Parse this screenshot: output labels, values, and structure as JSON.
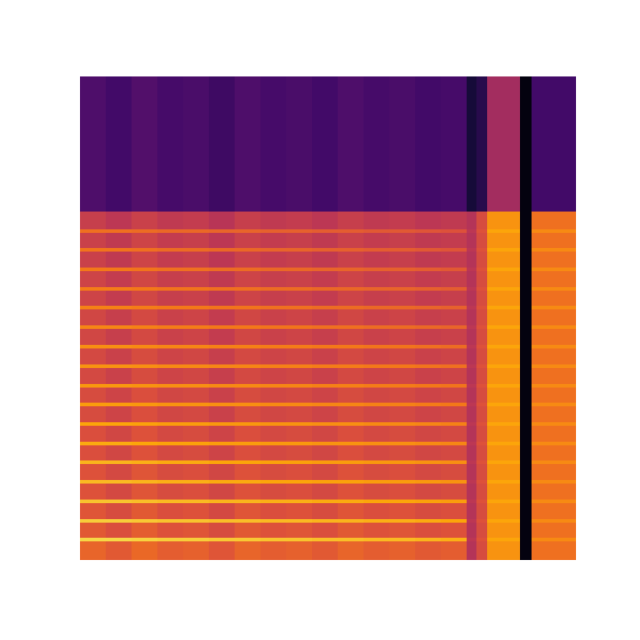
{
  "chart_data": {
    "type": "heatmap",
    "tick_labels": false,
    "xlim": [
      0,
      558
    ],
    "ylim": [
      0,
      544
    ],
    "zlim": [
      -100,
      0
    ],
    "x_bins": [
      0,
      29,
      58,
      87,
      116,
      145,
      174,
      203,
      232,
      261,
      290,
      319,
      348,
      377,
      406,
      435,
      446,
      458,
      495,
      508,
      558
    ],
    "y_bins": [
      0,
      21,
      25,
      42,
      46,
      64,
      68,
      86,
      90,
      108,
      112,
      129,
      133,
      151,
      155,
      173,
      177,
      194,
      198,
      216,
      220,
      238,
      242,
      260,
      264,
      282,
      286,
      303,
      307,
      325,
      329,
      347,
      351,
      368,
      372,
      392,
      544
    ],
    "values": [
      [
        -35,
        -38,
        -34,
        -37,
        -36,
        -39,
        -35,
        -37,
        -36,
        -38,
        -35,
        -37,
        -36,
        -38,
        -37,
        -52,
        -42,
        -24,
        -98,
        -32
      ],
      [
        -10,
        -10,
        -11,
        -12,
        -12,
        -13,
        -13,
        -14,
        -14,
        -15,
        -15,
        -16,
        -16,
        -17,
        -18,
        -50,
        -40,
        -20,
        -98,
        -26
      ],
      [
        -38,
        -41,
        -37,
        -40,
        -39,
        -42,
        -38,
        -40,
        -39,
        -41,
        -38,
        -40,
        -39,
        -41,
        -40,
        -52,
        -42,
        -24,
        -98,
        -32
      ],
      [
        -12,
        -12,
        -13,
        -14,
        -14,
        -15,
        -15,
        -16,
        -16,
        -17,
        -17,
        -18,
        -18,
        -19,
        -20,
        -50,
        -40,
        -20,
        -98,
        -26
      ],
      [
        -39,
        -42,
        -38,
        -41,
        -40,
        -43,
        -39,
        -41,
        -40,
        -42,
        -39,
        -41,
        -40,
        -42,
        -41,
        -52,
        -42,
        -24,
        -98,
        -32
      ],
      [
        -14,
        -14,
        -15,
        -16,
        -16,
        -17,
        -17,
        -18,
        -18,
        -19,
        -19,
        -20,
        -20,
        -21,
        -22,
        -50,
        -40,
        -20,
        -98,
        -26
      ],
      [
        -40,
        -43,
        -39,
        -42,
        -41,
        -44,
        -40,
        -42,
        -41,
        -43,
        -40,
        -42,
        -41,
        -43,
        -42,
        -52,
        -42,
        -24,
        -98,
        -32
      ],
      [
        -16,
        -16,
        -17,
        -18,
        -18,
        -19,
        -19,
        -20,
        -20,
        -21,
        -21,
        -22,
        -22,
        -23,
        -24,
        -50,
        -40,
        -20,
        -98,
        -26
      ],
      [
        -40,
        -43,
        -39,
        -42,
        -41,
        -44,
        -40,
        -42,
        -41,
        -43,
        -40,
        -42,
        -41,
        -43,
        -42,
        -52,
        -42,
        -24,
        -98,
        -32
      ],
      [
        -17,
        -17,
        -18,
        -19,
        -19,
        -20,
        -20,
        -21,
        -21,
        -22,
        -22,
        -23,
        -23,
        -24,
        -25,
        -50,
        -40,
        -20,
        -98,
        -26
      ],
      [
        -41,
        -44,
        -40,
        -43,
        -42,
        -45,
        -41,
        -43,
        -42,
        -44,
        -41,
        -43,
        -42,
        -44,
        -43,
        -52,
        -42,
        -24,
        -98,
        -32
      ],
      [
        -19,
        -19,
        -20,
        -21,
        -21,
        -22,
        -22,
        -23,
        -23,
        -24,
        -24,
        -25,
        -25,
        -26,
        -27,
        -50,
        -40,
        -20,
        -98,
        -26
      ],
      [
        -41,
        -44,
        -40,
        -43,
        -42,
        -45,
        -41,
        -43,
        -42,
        -44,
        -41,
        -43,
        -42,
        -44,
        -43,
        -52,
        -42,
        -24,
        -98,
        -32
      ],
      [
        -20,
        -20,
        -21,
        -22,
        -22,
        -23,
        -23,
        -24,
        -24,
        -25,
        -25,
        -26,
        -26,
        -27,
        -28,
        -50,
        -40,
        -20,
        -98,
        -26
      ],
      [
        -42,
        -45,
        -41,
        -44,
        -43,
        -46,
        -42,
        -44,
        -43,
        -45,
        -42,
        -44,
        -43,
        -45,
        -44,
        -52,
        -42,
        -24,
        -98,
        -32
      ],
      [
        -22,
        -22,
        -23,
        -24,
        -24,
        -25,
        -25,
        -26,
        -26,
        -27,
        -27,
        -28,
        -28,
        -29,
        -30,
        -50,
        -40,
        -20,
        -98,
        -26
      ],
      [
        -42,
        -45,
        -41,
        -44,
        -43,
        -46,
        -42,
        -44,
        -43,
        -45,
        -42,
        -44,
        -43,
        -45,
        -44,
        -52,
        -42,
        -24,
        -98,
        -32
      ],
      [
        -23,
        -23,
        -24,
        -25,
        -25,
        -26,
        -26,
        -27,
        -27,
        -28,
        -28,
        -29,
        -29,
        -30,
        -31,
        -50,
        -40,
        -20,
        -98,
        -26
      ],
      [
        -43,
        -46,
        -42,
        -45,
        -44,
        -47,
        -43,
        -45,
        -44,
        -46,
        -43,
        -45,
        -44,
        -46,
        -45,
        -52,
        -42,
        -24,
        -98,
        -32
      ],
      [
        -24,
        -24,
        -25,
        -26,
        -26,
        -27,
        -27,
        -28,
        -28,
        -29,
        -29,
        -30,
        -30,
        -31,
        -32,
        -50,
        -40,
        -20,
        -98,
        -26
      ],
      [
        -43,
        -46,
        -42,
        -45,
        -44,
        -47,
        -43,
        -45,
        -44,
        -46,
        -43,
        -45,
        -44,
        -46,
        -45,
        -52,
        -42,
        -24,
        -98,
        -32
      ],
      [
        -25,
        -25,
        -26,
        -27,
        -27,
        -28,
        -28,
        -29,
        -29,
        -30,
        -30,
        -31,
        -31,
        -32,
        -33,
        -50,
        -40,
        -20,
        -98,
        -26
      ],
      [
        -44,
        -47,
        -43,
        -46,
        -45,
        -48,
        -44,
        -46,
        -45,
        -47,
        -44,
        -46,
        -45,
        -47,
        -46,
        -52,
        -42,
        -24,
        -98,
        -32
      ],
      [
        -27,
        -27,
        -28,
        -29,
        -29,
        -30,
        -30,
        -31,
        -31,
        -32,
        -32,
        -33,
        -33,
        -34,
        -35,
        -50,
        -40,
        -20,
        -98,
        -26
      ],
      [
        -44,
        -47,
        -43,
        -46,
        -45,
        -48,
        -44,
        -46,
        -45,
        -47,
        -44,
        -46,
        -45,
        -47,
        -46,
        -52,
        -42,
        -24,
        -98,
        -32
      ],
      [
        -28,
        -28,
        -29,
        -30,
        -30,
        -31,
        -31,
        -32,
        -32,
        -33,
        -33,
        -34,
        -34,
        -35,
        -36,
        -50,
        -40,
        -20,
        -98,
        -26
      ],
      [
        -45,
        -48,
        -44,
        -47,
        -46,
        -49,
        -45,
        -47,
        -46,
        -48,
        -45,
        -47,
        -46,
        -48,
        -47,
        -52,
        -42,
        -24,
        -98,
        -32
      ],
      [
        -29,
        -29,
        -30,
        -31,
        -31,
        -32,
        -32,
        -33,
        -33,
        -34,
        -34,
        -35,
        -35,
        -36,
        -37,
        -50,
        -40,
        -20,
        -98,
        -26
      ],
      [
        -45,
        -48,
        -44,
        -47,
        -46,
        -49,
        -45,
        -47,
        -46,
        -48,
        -45,
        -47,
        -46,
        -48,
        -47,
        -52,
        -42,
        -24,
        -98,
        -32
      ],
      [
        -30,
        -30,
        -31,
        -32,
        -32,
        -33,
        -33,
        -34,
        -34,
        -35,
        -35,
        -36,
        -36,
        -37,
        -38,
        -50,
        -40,
        -20,
        -98,
        -26
      ],
      [
        -46,
        -49,
        -45,
        -48,
        -47,
        -50,
        -46,
        -48,
        -47,
        -49,
        -46,
        -48,
        -47,
        -49,
        -48,
        -52,
        -42,
        -24,
        -98,
        -32
      ],
      [
        -31,
        -31,
        -32,
        -33,
        -33,
        -34,
        -34,
        -35,
        -35,
        -36,
        -36,
        -37,
        -37,
        -38,
        -39,
        -50,
        -40,
        -20,
        -98,
        -26
      ],
      [
        -46,
        -49,
        -45,
        -48,
        -47,
        -50,
        -46,
        -48,
        -47,
        -49,
        -46,
        -48,
        -47,
        -49,
        -48,
        -52,
        -42,
        -24,
        -98,
        -32
      ],
      [
        -32,
        -32,
        -33,
        -34,
        -34,
        -35,
        -35,
        -36,
        -36,
        -37,
        -37,
        -38,
        -38,
        -39,
        -40,
        -50,
        -40,
        -20,
        -98,
        -26
      ],
      [
        -47,
        -50,
        -46,
        -49,
        -48,
        -51,
        -47,
        -49,
        -48,
        -50,
        -47,
        -49,
        -48,
        -50,
        -49,
        -52,
        -42,
        -24,
        -98,
        -32
      ],
      [
        -77,
        -80,
        -76,
        -79,
        -78,
        -81,
        -77,
        -79,
        -78,
        -80,
        -77,
        -79,
        -78,
        -80,
        -79,
        -90,
        -86,
        -56,
        -98,
        -80
      ]
    ]
  }
}
